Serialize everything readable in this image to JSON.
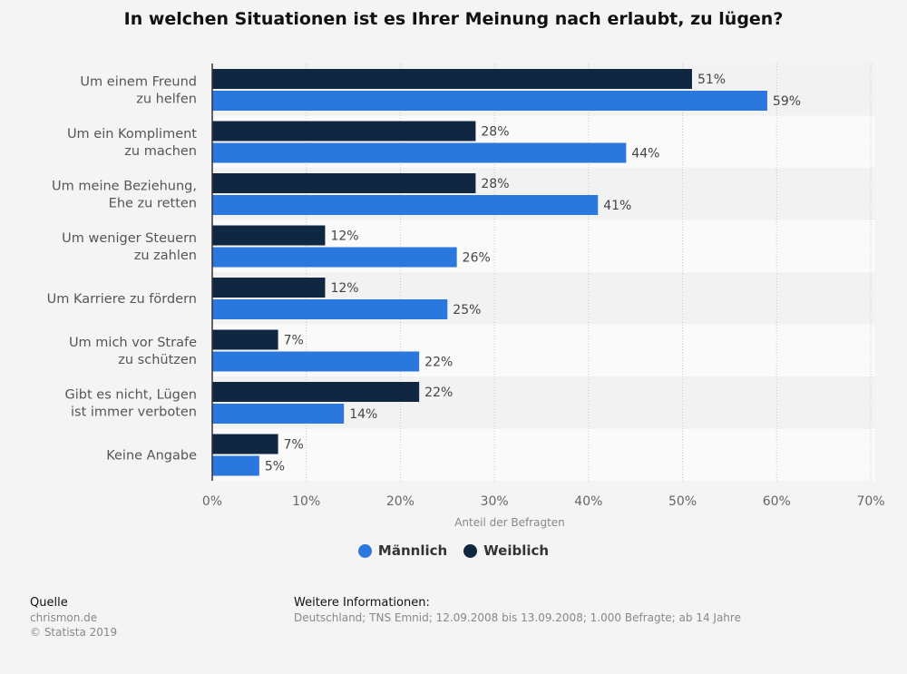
{
  "chart_data": {
    "type": "bar",
    "orientation": "horizontal",
    "title": "In welchen Situationen ist es Ihrer Meinung nach erlaubt, zu lügen?",
    "categories": [
      [
        "Um einem Freund",
        "zu helfen"
      ],
      [
        "Um ein Kompliment",
        "zu machen"
      ],
      [
        "Um meine Beziehung,",
        "Ehe zu retten"
      ],
      [
        "Um weniger Steuern",
        "zu zahlen"
      ],
      [
        "Um Karriere zu fördern"
      ],
      [
        "Um mich vor Strafe",
        "zu schützen"
      ],
      [
        "Gibt es nicht, Lügen",
        "ist immer verboten"
      ],
      [
        "Keine Angabe"
      ]
    ],
    "series": [
      {
        "name": "Weiblich",
        "color": "#0f2740",
        "values": [
          51,
          28,
          28,
          12,
          12,
          7,
          22,
          7
        ]
      },
      {
        "name": "Männlich",
        "color": "#2a77dd",
        "values": [
          59,
          44,
          41,
          26,
          25,
          22,
          14,
          5
        ]
      }
    ],
    "legend_order": [
      "Männlich",
      "Weiblich"
    ],
    "xlabel": "Anteil der Befragten",
    "xlim": [
      0,
      70
    ],
    "xticks": [
      "0%",
      "10%",
      "20%",
      "30%",
      "40%",
      "50%",
      "60%",
      "70%"
    ],
    "value_suffix": "%",
    "grid": true,
    "legend_position": "bottom"
  },
  "footer": {
    "source_heading": "Quelle",
    "source": "chrismon.de",
    "copyright": "© Statista 2019",
    "info_heading": "Weitere Informationen:",
    "info": "Deutschland; TNS Emnid; 12.09.2008 bis 13.09.2008; 1.000 Befragte; ab 14 Jahre"
  }
}
